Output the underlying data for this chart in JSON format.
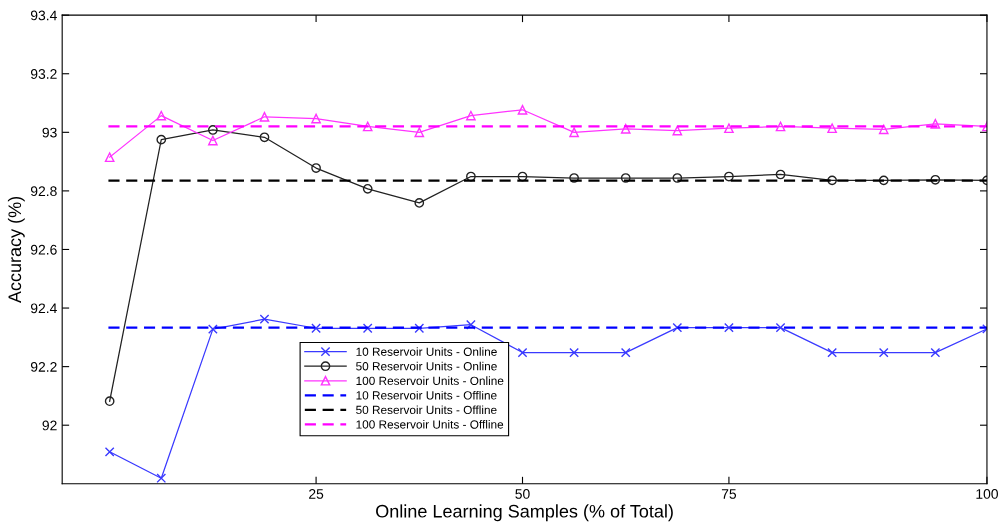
{
  "chart_data": {
    "type": "line",
    "xlabel": "Online Learning Samples (% of Total)",
    "ylabel": "Accuracy (%)",
    "categories": [
      null,
      null,
      null,
      null,
      "25",
      null,
      null,
      null,
      "50",
      null,
      null,
      null,
      "75",
      null,
      null,
      null,
      null,
      "100"
    ],
    "series": [
      {
        "name": "10 Reservoir Units - Online",
        "color": "#3a3aff",
        "marker": "cross",
        "values": [
          91.909,
          91.819,
          92.328,
          92.362,
          92.331,
          92.331,
          92.331,
          92.343,
          92.248,
          92.248,
          92.248,
          92.333,
          92.333,
          92.333,
          92.248,
          92.248,
          92.248,
          92.329
        ]
      },
      {
        "name": "50 Reservoir Units - Online",
        "color": "#222222",
        "marker": "circle",
        "values": [
          92.082,
          92.975,
          93.008,
          92.983,
          92.878,
          92.807,
          92.759,
          92.849,
          92.849,
          92.844,
          92.844,
          92.844,
          92.849,
          92.856,
          92.836,
          92.836,
          92.838,
          92.836
        ]
      },
      {
        "name": "100 Reservoir Units - Online",
        "color": "#ff33ff",
        "marker": "triangle",
        "values": [
          92.915,
          93.057,
          92.972,
          93.053,
          93.047,
          93.02,
          93.0,
          93.057,
          93.077,
          93.0,
          93.012,
          93.006,
          93.014,
          93.02,
          93.014,
          93.01,
          93.029,
          93.02
        ]
      }
    ],
    "ref_lines": [
      {
        "axis": "y",
        "value": 92.333,
        "label": "10 Reservoir Units - Offline",
        "color": "#0000ff",
        "line_style": "dashed"
      },
      {
        "axis": "y",
        "value": 92.835,
        "label": "50 Reservoir Units - Offline",
        "color": "#000000",
        "line_style": "dashed"
      },
      {
        "axis": "y",
        "value": 93.02,
        "label": "100 Reservoir Units - Offline",
        "color": "#ff00ff",
        "line_style": "dashed"
      }
    ],
    "ylim": [
      91.8,
      93.4
    ],
    "yticks": [
      92,
      92.2,
      92.4,
      92.6,
      92.8,
      93,
      93.2,
      93.4
    ],
    "grid": false,
    "legend": "bottom",
    "line_style": "solid"
  }
}
